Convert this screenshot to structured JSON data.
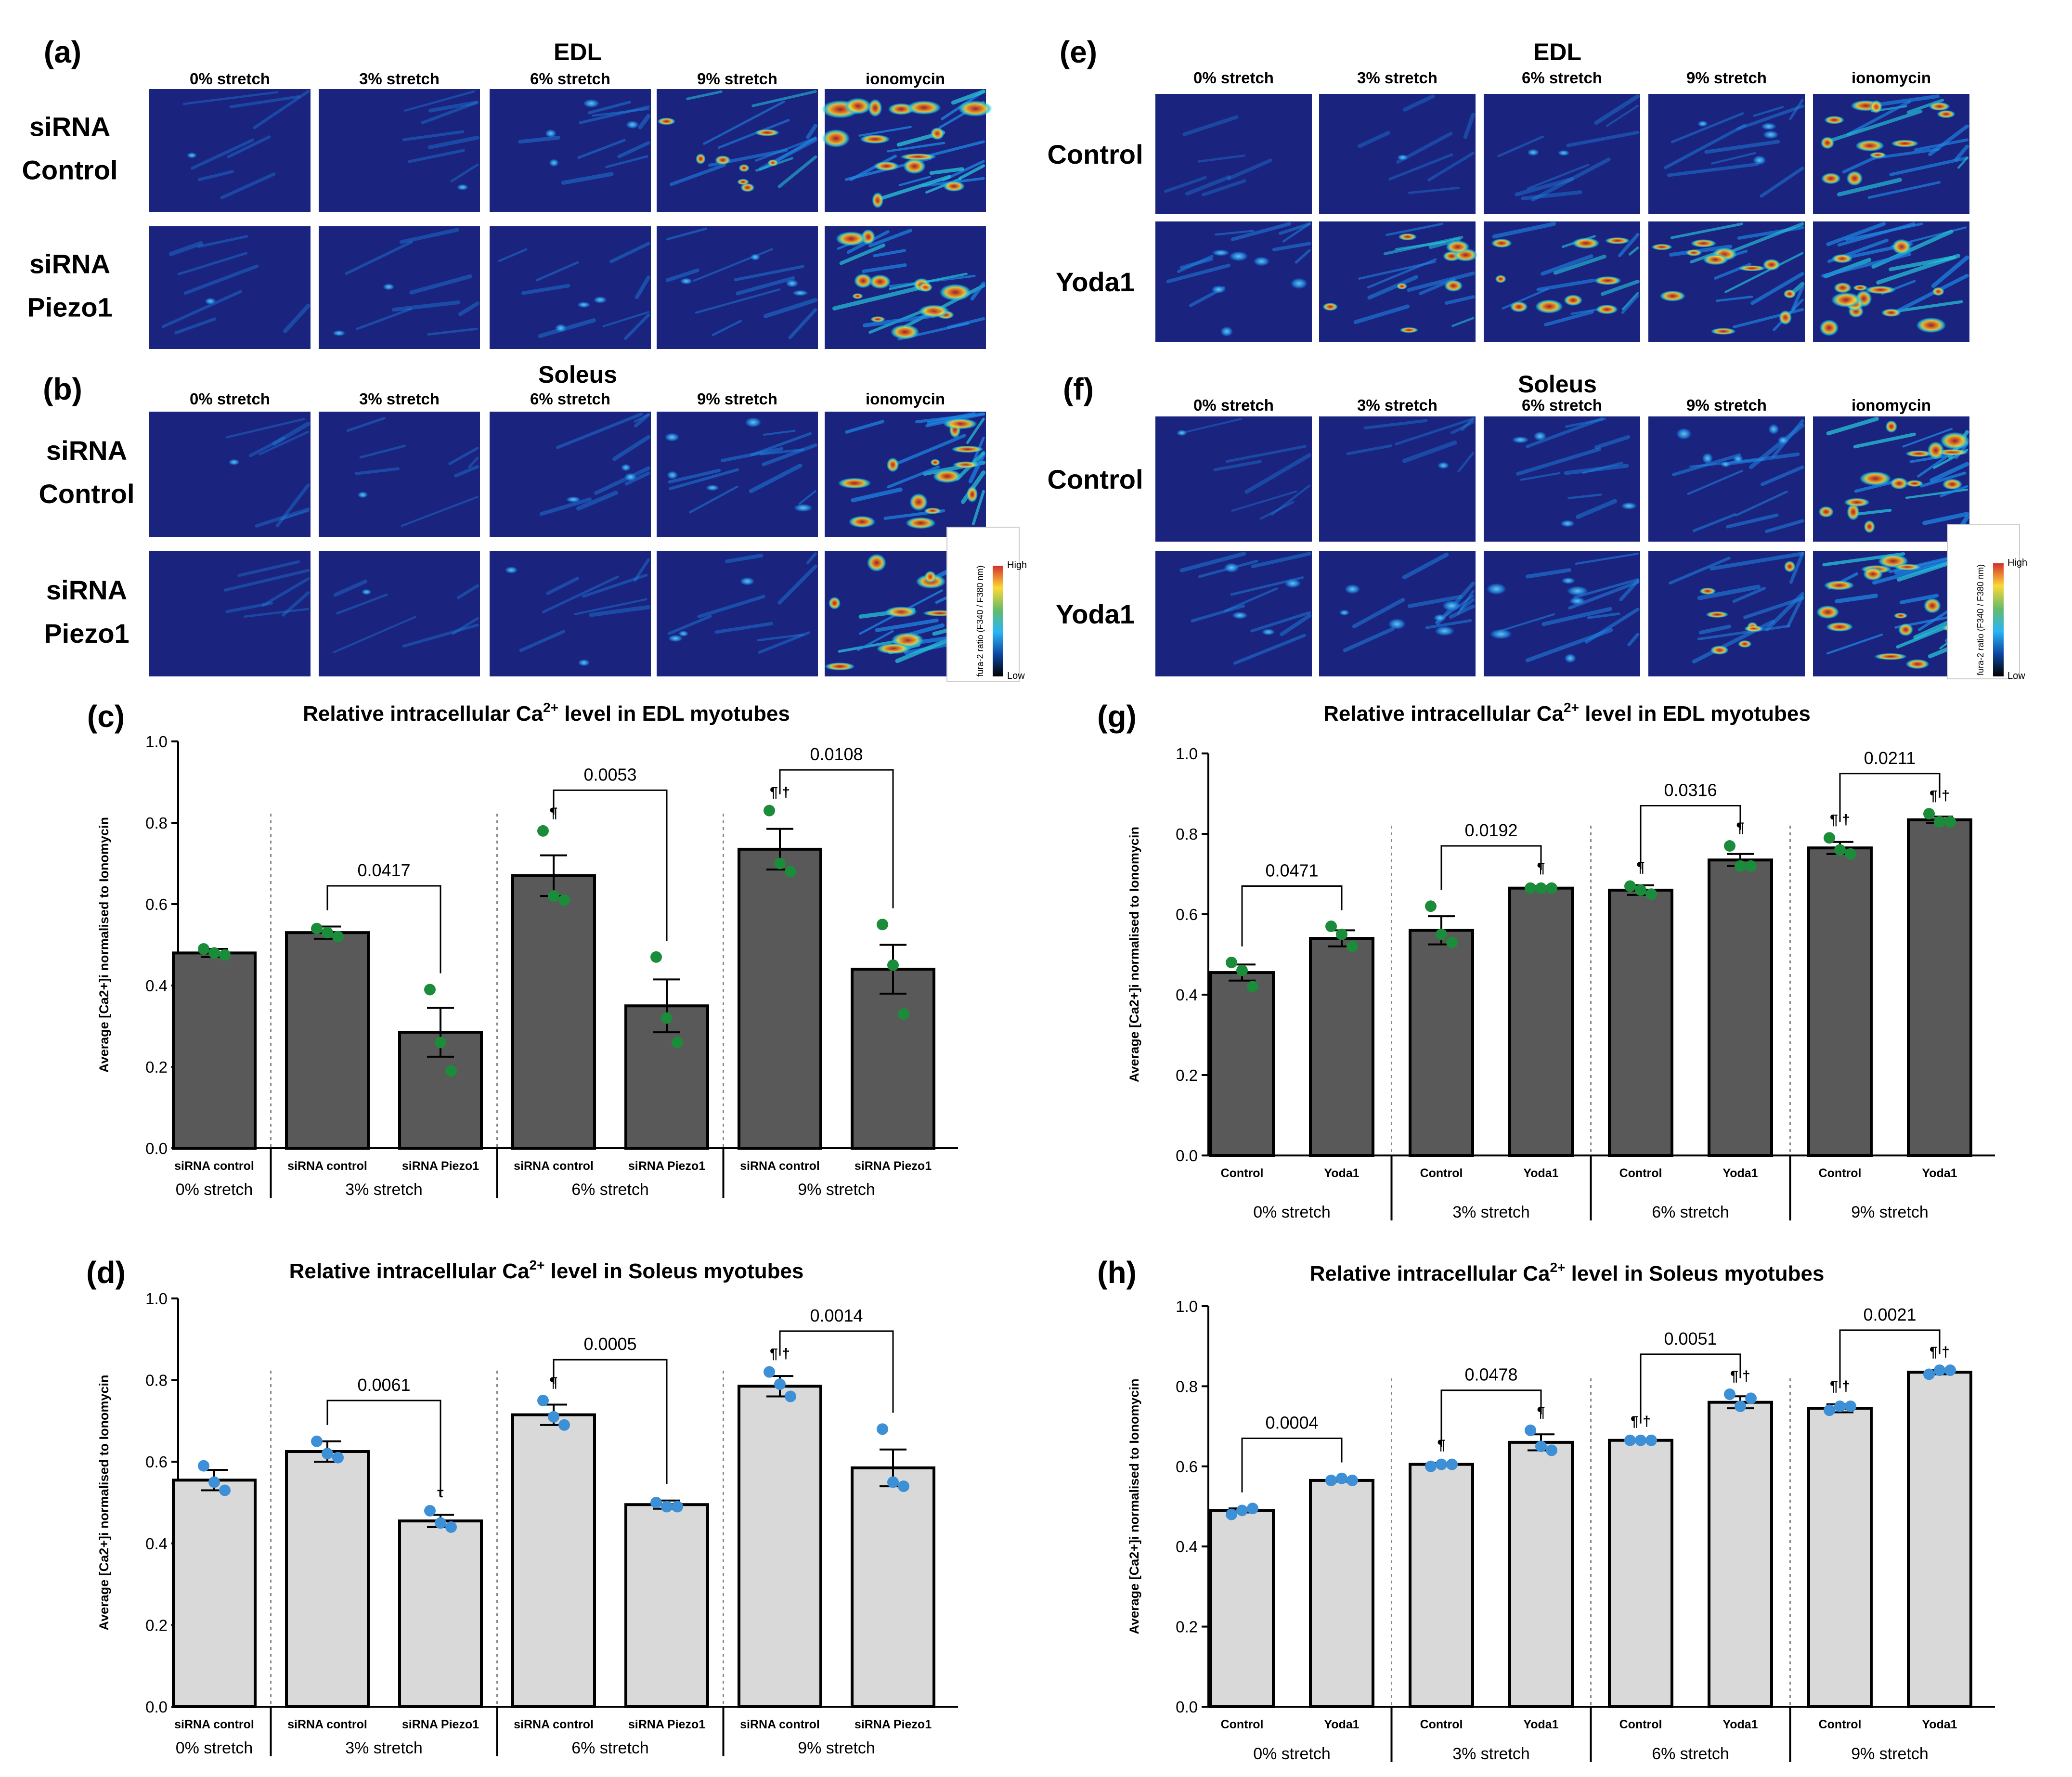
{
  "figure": {
    "micrographs": {
      "column_headers": [
        "0% stretch",
        "3% stretch",
        "6% stretch",
        "9% stretch",
        "ionomycin"
      ],
      "colorbar": {
        "high": "High",
        "low": "Low",
        "label": "fura-2 ratio (F340 / F380 nm)"
      },
      "colors": {
        "bg": "#1a237e",
        "mid": "#1e88e5",
        "cyan": "#26c6da",
        "yellow": "#fdd835",
        "red": "#c62828"
      },
      "panels": [
        {
          "letter": "(a)",
          "muscle": "EDL",
          "rows": [
            [
              "siRNA",
              "Control"
            ],
            [
              "siRNA",
              "Piezo1"
            ]
          ],
          "intensity": [
            [
              0.05,
              0.1,
              0.25,
              0.55,
              1.0
            ],
            [
              0.08,
              0.12,
              0.18,
              0.25,
              0.85
            ]
          ]
        },
        {
          "letter": "(b)",
          "muscle": "Soleus",
          "rows": [
            [
              "siRNA",
              "Control"
            ],
            [
              "siRNA",
              "Piezo1"
            ]
          ],
          "intensity": [
            [
              0.05,
              0.08,
              0.2,
              0.35,
              0.9
            ],
            [
              0.02,
              0.04,
              0.12,
              0.2,
              0.95
            ]
          ]
        },
        {
          "letter": "(e)",
          "muscle": "EDL",
          "rows": [
            [
              "Control"
            ],
            [
              "Yoda1"
            ]
          ],
          "intensity": [
            [
              0.02,
              0.05,
              0.15,
              0.3,
              0.75
            ],
            [
              0.4,
              0.55,
              0.65,
              0.75,
              0.9
            ]
          ]
        },
        {
          "letter": "(f)",
          "muscle": "Soleus",
          "rows": [
            [
              "Control"
            ],
            [
              "Yoda1"
            ]
          ],
          "intensity": [
            [
              0.05,
              0.1,
              0.3,
              0.45,
              0.95
            ],
            [
              0.3,
              0.4,
              0.45,
              0.5,
              0.95
            ]
          ]
        }
      ]
    }
  },
  "chart_data": [
    {
      "panel": "(c)",
      "type": "bar",
      "title_pre": "Relative intracellular Ca",
      "title_sup": "2+",
      "title_post": " level in EDL myotubes",
      "ylabel": "Average [Ca2+]i normalised to Ionomycin",
      "ylim": [
        0,
        1.0
      ],
      "yticks": [
        "0.0",
        "0.2",
        "0.4",
        "0.6",
        "0.8",
        "1.0"
      ],
      "bar_color": "#595959",
      "dot_color": "#1b8c3a",
      "categories": [
        "siRNA control",
        "siRNA control",
        "siRNA Piezo1",
        "siRNA control",
        "siRNA Piezo1",
        "siRNA control",
        "siRNA Piezo1"
      ],
      "groups": [
        "0%  stretch",
        "3%  stretch",
        "6%  stretch",
        "9%  stretch"
      ],
      "group_of_bar": [
        0,
        1,
        1,
        2,
        2,
        3,
        3
      ],
      "values": [
        0.48,
        0.53,
        0.285,
        0.67,
        0.35,
        0.735,
        0.44
      ],
      "sem": [
        0.01,
        0.015,
        0.06,
        0.05,
        0.065,
        0.05,
        0.06
      ],
      "points": [
        [
          0.49,
          0.48,
          0.475
        ],
        [
          0.54,
          0.53,
          0.52
        ],
        [
          0.39,
          0.26,
          0.19
        ],
        [
          0.78,
          0.62,
          0.61
        ],
        [
          0.47,
          0.32,
          0.26
        ],
        [
          0.83,
          0.7,
          0.68
        ],
        [
          0.55,
          0.45,
          0.33
        ]
      ],
      "symbols": [
        "",
        "",
        "",
        "¶",
        "",
        "¶ †",
        ""
      ],
      "comparisons": [
        {
          "bars": [
            1,
            2
          ],
          "p": "0.0417"
        },
        {
          "bars": [
            3,
            4
          ],
          "p": "0.0053"
        },
        {
          "bars": [
            5,
            6
          ],
          "p": "0.0108"
        }
      ]
    },
    {
      "panel": "(d)",
      "type": "bar",
      "title_pre": "Relative intracellular Ca",
      "title_sup": "2+",
      "title_post": " level in Soleus myotubes",
      "ylabel": "Average [Ca2+]i normalised to Ionomycin",
      "ylim": [
        0,
        1.0
      ],
      "yticks": [
        "0.0",
        "0.2",
        "0.4",
        "0.6",
        "0.8",
        "1.0"
      ],
      "bar_color": "#d9d9d9",
      "dot_color": "#3d8fd6",
      "categories": [
        "siRNA control",
        "siRNA control",
        "siRNA Piezo1",
        "siRNA control",
        "siRNA Piezo1",
        "siRNA control",
        "siRNA Piezo1"
      ],
      "groups": [
        "0%  stretch",
        "3%  stretch",
        "6%  stretch",
        "9%  stretch"
      ],
      "group_of_bar": [
        0,
        1,
        1,
        2,
        2,
        3,
        3
      ],
      "values": [
        0.555,
        0.625,
        0.455,
        0.715,
        0.495,
        0.785,
        0.585
      ],
      "sem": [
        0.025,
        0.025,
        0.015,
        0.025,
        0.01,
        0.025,
        0.045
      ],
      "points": [
        [
          0.59,
          0.55,
          0.53
        ],
        [
          0.65,
          0.62,
          0.61
        ],
        [
          0.48,
          0.45,
          0.44
        ],
        [
          0.75,
          0.71,
          0.69
        ],
        [
          0.5,
          0.49,
          0.49
        ],
        [
          0.82,
          0.79,
          0.76
        ],
        [
          0.68,
          0.55,
          0.54
        ]
      ],
      "symbols": [
        "",
        "",
        "τ",
        "¶",
        "",
        "¶ †",
        ""
      ],
      "comparisons": [
        {
          "bars": [
            1,
            2
          ],
          "p": "0.0061"
        },
        {
          "bars": [
            3,
            4
          ],
          "p": "0.0005"
        },
        {
          "bars": [
            5,
            6
          ],
          "p": "0.0014"
        }
      ]
    },
    {
      "panel": "(g)",
      "type": "bar",
      "title_pre": "Relative intracellular Ca",
      "title_sup": "2+",
      "title_post": " level in EDL myotubes",
      "ylabel": "Average [Ca2+]i normalised to Ionomycin",
      "ylim": [
        0,
        1.0
      ],
      "yticks": [
        "0.0",
        "0.2",
        "0.4",
        "0.6",
        "0.8",
        "1.0"
      ],
      "bar_color": "#595959",
      "dot_color": "#1b8c3a",
      "categories": [
        "Control",
        "Yoda1",
        "Control",
        "Yoda1",
        "Control",
        "Yoda1",
        "Control",
        "Yoda1"
      ],
      "groups": [
        "0%  stretch",
        "3%  stretch",
        "6%  stretch",
        "9%  stretch"
      ],
      "group_of_bar": [
        0,
        0,
        1,
        1,
        2,
        2,
        3,
        3
      ],
      "values": [
        0.455,
        0.54,
        0.56,
        0.665,
        0.66,
        0.735,
        0.765,
        0.835
      ],
      "sem": [
        0.02,
        0.02,
        0.035,
        0.005,
        0.012,
        0.015,
        0.015,
        0.008
      ],
      "points": [
        [
          0.48,
          0.46,
          0.42
        ],
        [
          0.57,
          0.55,
          0.52
        ],
        [
          0.62,
          0.55,
          0.53
        ],
        [
          0.665,
          0.665,
          0.665
        ],
        [
          0.67,
          0.66,
          0.65
        ],
        [
          0.77,
          0.72,
          0.72
        ],
        [
          0.79,
          0.76,
          0.75
        ],
        [
          0.85,
          0.83,
          0.83
        ]
      ],
      "symbols": [
        "",
        "",
        "",
        "¶",
        "¶",
        "¶",
        "¶ †",
        "¶ †"
      ],
      "comparisons": [
        {
          "bars": [
            0,
            1
          ],
          "p": "0.0471"
        },
        {
          "bars": [
            2,
            3
          ],
          "p": "0.0192"
        },
        {
          "bars": [
            4,
            5
          ],
          "p": "0.0316"
        },
        {
          "bars": [
            6,
            7
          ],
          "p": "0.0211"
        }
      ]
    },
    {
      "panel": "(h)",
      "type": "bar",
      "title_pre": "Relative intracellular Ca",
      "title_sup": "2+",
      "title_post": " level in Soleus myotubes",
      "ylabel": "Average [Ca2+]i normalised to Ionomycin",
      "ylim": [
        0,
        1.0
      ],
      "yticks": [
        "0.0",
        "0.2",
        "0.4",
        "0.6",
        "0.8",
        "1.0"
      ],
      "bar_color": "#d9d9d9",
      "dot_color": "#3d8fd6",
      "categories": [
        "Control",
        "Yoda1",
        "Control",
        "Yoda1",
        "Control",
        "Yoda1",
        "Control",
        "Yoda1"
      ],
      "groups": [
        "0%  stretch",
        "3%  stretch",
        "6%  stretch",
        "9%  stretch"
      ],
      "group_of_bar": [
        0,
        0,
        1,
        1,
        2,
        2,
        3,
        3
      ],
      "values": [
        0.49,
        0.565,
        0.605,
        0.66,
        0.665,
        0.76,
        0.745,
        0.835
      ],
      "sem": [
        0.005,
        0.003,
        0.003,
        0.02,
        0.002,
        0.015,
        0.01,
        0.005
      ],
      "points": [
        [
          0.48,
          0.49,
          0.495
        ],
        [
          0.565,
          0.57,
          0.565
        ],
        [
          0.6,
          0.605,
          0.605
        ],
        [
          0.69,
          0.65,
          0.64
        ],
        [
          0.665,
          0.665,
          0.665
        ],
        [
          0.78,
          0.75,
          0.77
        ],
        [
          0.74,
          0.75,
          0.75
        ],
        [
          0.83,
          0.84,
          0.84
        ]
      ],
      "symbols": [
        "",
        "",
        "¶",
        "¶",
        "¶  †",
        "¶  †",
        "¶ †",
        "¶  †"
      ],
      "comparisons": [
        {
          "bars": [
            0,
            1
          ],
          "p": "0.0004"
        },
        {
          "bars": [
            2,
            3
          ],
          "p": "0.0478"
        },
        {
          "bars": [
            4,
            5
          ],
          "p": "0.0051"
        },
        {
          "bars": [
            6,
            7
          ],
          "p": "0.0021"
        }
      ]
    }
  ]
}
